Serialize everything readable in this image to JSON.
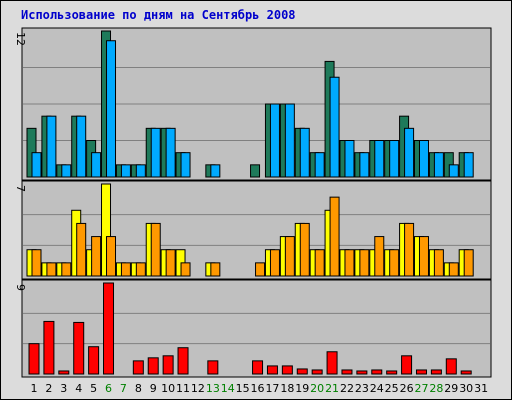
{
  "title": "Использование по дням на Сентябрь 2008",
  "colors": {
    "panel_bg": "#c0c0c0",
    "grid": "#808080",
    "weekday_label": "#000000",
    "weekend_label": "#008000",
    "hits": "#1e7a5a",
    "files": "#00aaff",
    "pages_a": "#ffff00",
    "pages_b": "#ff9900",
    "visits": "#ff0000"
  },
  "chart_data": [
    {
      "type": "bar",
      "panel": "top",
      "ymax_label": "12",
      "ylim": [
        0,
        12
      ],
      "categories": [
        "1",
        "2",
        "3",
        "4",
        "5",
        "6",
        "7",
        "8",
        "9",
        "10",
        "11",
        "12",
        "13",
        "14",
        "15",
        "16",
        "17",
        "18",
        "19",
        "20",
        "21",
        "22",
        "23",
        "24",
        "25",
        "26",
        "27",
        "28",
        "29",
        "30",
        "31"
      ],
      "series": [
        {
          "values": [
            4,
            5,
            1,
            5,
            3,
            12,
            1,
            1,
            4,
            4,
            2,
            0,
            1,
            0,
            0,
            1,
            6,
            6,
            4,
            2,
            9.5,
            3,
            2,
            3,
            3,
            5,
            3,
            2,
            2,
            2,
            0
          ]
        },
        {
          "values": [
            2,
            5,
            1,
            5,
            2,
            11.2,
            1,
            1,
            4,
            4,
            2,
            0,
            1,
            0,
            0,
            0,
            6,
            6,
            4,
            2,
            8.2,
            3,
            2,
            3,
            3,
            4,
            3,
            2,
            1,
            2,
            0
          ]
        }
      ]
    },
    {
      "type": "bar",
      "panel": "middle",
      "ymax_label": "7",
      "ylim": [
        0,
        7
      ],
      "categories": [
        "1",
        "2",
        "3",
        "4",
        "5",
        "6",
        "7",
        "8",
        "9",
        "10",
        "11",
        "12",
        "13",
        "14",
        "15",
        "16",
        "17",
        "18",
        "19",
        "20",
        "21",
        "22",
        "23",
        "24",
        "25",
        "26",
        "27",
        "28",
        "29",
        "30",
        "31"
      ],
      "series": [
        {
          "values": [
            2,
            1,
            1,
            5,
            2,
            7,
            1,
            1,
            4,
            2,
            2,
            0,
            1,
            0,
            0,
            0,
            2,
            3,
            4,
            2,
            5,
            2,
            2,
            2,
            2,
            4,
            3,
            2,
            1,
            2,
            0
          ]
        },
        {
          "values": [
            2,
            1,
            1,
            4,
            3,
            3,
            1,
            1,
            4,
            2,
            1,
            0,
            1,
            0,
            0,
            1,
            2,
            3,
            4,
            2,
            6,
            2,
            2,
            3,
            2,
            4,
            3,
            2,
            1,
            2,
            0
          ]
        }
      ]
    },
    {
      "type": "bar",
      "panel": "bottom",
      "ymax_label": "9",
      "ylim": [
        0,
        9
      ],
      "categories": [
        "1",
        "2",
        "3",
        "4",
        "5",
        "6",
        "7",
        "8",
        "9",
        "10",
        "11",
        "12",
        "13",
        "14",
        "15",
        "16",
        "17",
        "18",
        "19",
        "20",
        "21",
        "22",
        "23",
        "24",
        "25",
        "26",
        "27",
        "28",
        "29",
        "30",
        "31"
      ],
      "series": [
        {
          "values": [
            3,
            5.2,
            0.3,
            5.1,
            2.7,
            9,
            0,
            1.3,
            1.6,
            1.8,
            2.6,
            0,
            1.3,
            0,
            0,
            1.3,
            0.8,
            0.8,
            0.5,
            0.4,
            2.2,
            0.4,
            0.3,
            0.4,
            0.3,
            1.8,
            0.4,
            0.4,
            1.5,
            0.3,
            0
          ]
        }
      ]
    }
  ],
  "weekend_days": [
    6,
    7,
    13,
    14,
    20,
    21,
    27,
    28
  ]
}
